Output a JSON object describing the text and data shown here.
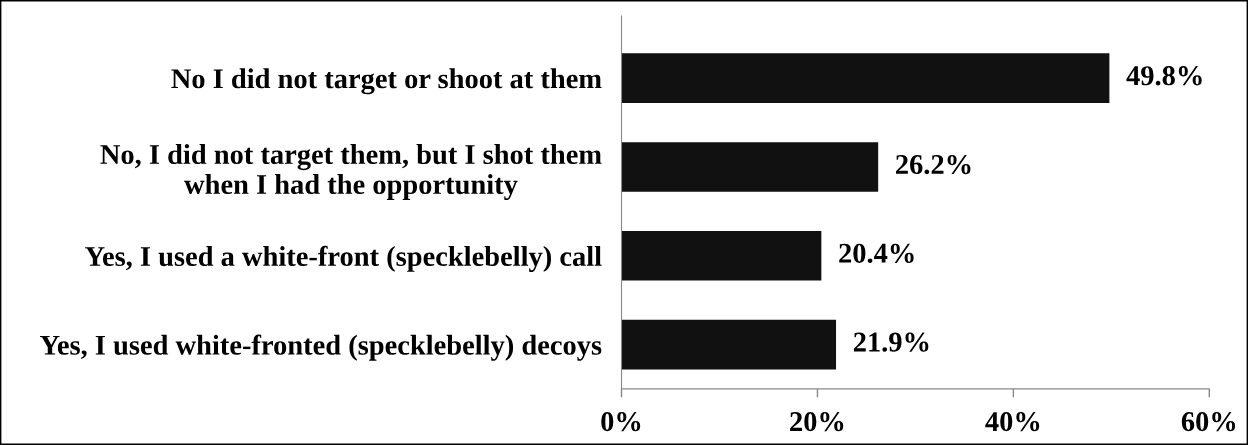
{
  "chart_data": {
    "type": "bar",
    "orientation": "horizontal",
    "categories": [
      "No I did not target or shoot at them",
      "No, I did not target them, but I shot them\nwhen I had the opportunity",
      "Yes, I used a white-front (specklebelly) call",
      "Yes, I used white-fronted (specklebelly) decoys"
    ],
    "values": [
      49.8,
      26.2,
      20.4,
      21.9
    ],
    "color": "#111111",
    "value_labels": [
      "49.8%",
      "26.2%",
      "20.4%",
      "21.9%"
    ],
    "xlim": [
      0,
      60
    ],
    "xticks": [
      {
        "value": 0,
        "label": "0%"
      },
      {
        "value": 20,
        "label": "20%"
      },
      {
        "value": 40,
        "label": "40%"
      },
      {
        "value": 60,
        "label": "60%"
      }
    ],
    "grid": false,
    "legend": false
  }
}
